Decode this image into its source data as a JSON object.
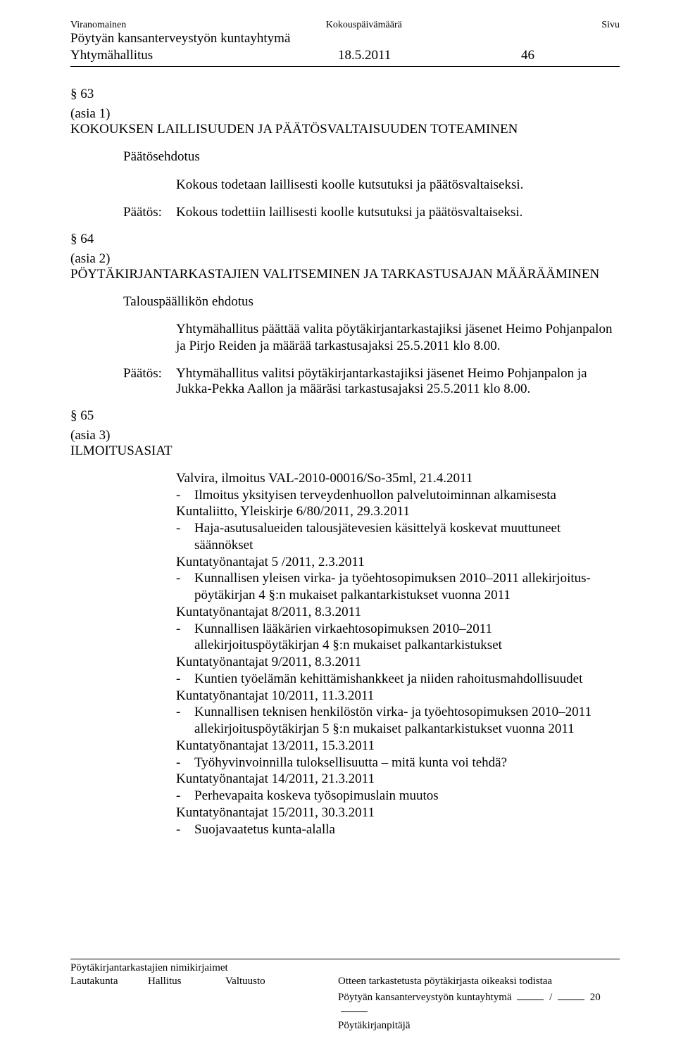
{
  "header": {
    "viranomainen": "Viranomainen",
    "kokous": "Kokouspäivämäärä",
    "sivu": "Sivu",
    "org": "Pöytyän kansanterveystyön kuntayhtymä",
    "body": "Yhtymähallitus",
    "date": "18.5.2011",
    "page": "46"
  },
  "s63": {
    "mark": "§ 63",
    "asia": "(asia 1)",
    "title": "KOKOUKSEN LAILLISUUDEN JA PÄÄTÖSVALTAISUUDEN TOTEAMINEN",
    "ehdotus_label": "Päätösehdotus",
    "ehdotus_text": "Kokous todetaan laillisesti koolle kutsutuksi ja päätösvaltaiseksi.",
    "paatos_label": "Päätös:",
    "paatos_text": "Kokous todettiin laillisesti koolle kutsutuksi ja päätösvaltaiseksi."
  },
  "s64": {
    "mark": "§ 64",
    "asia": "(asia 2)",
    "title": "PÖYTÄKIRJANTARKASTAJIEN VALITSEMINEN JA TARKASTUSAJAN MÄÄRÄÄMINEN",
    "ehdotus_label": "Talouspäällikön ehdotus",
    "ehdotus_text": "Yhtymähallitus päättää valita pöytäkirjantarkastajiksi jäsenet Heimo Pohjanpalon ja Pirjo Reiden ja määrää tarkastusajaksi 25.5.2011 klo 8.00.",
    "paatos_label": "Päätös:",
    "paatos_text": "Yhtymähallitus valitsi pöytäkirjantarkastajiksi jäsenet Heimo Pohjanpalon ja Jukka-Pekka Aallon ja määräsi tarkastusajaksi 25.5.2011 klo 8.00."
  },
  "s65": {
    "mark": "§ 65",
    "asia": "(asia 3)",
    "title": "ILMOITUSASIAT",
    "items": [
      {
        "ref": "Valvira, ilmoitus VAL-2010-00016/So-35ml, 21.4.2011",
        "bullets": [
          "Ilmoitus yksityisen terveydenhuollon palvelutoiminnan alkamisesta"
        ]
      },
      {
        "ref": "Kuntaliitto, Yleiskirje 6/80/2011, 29.3.2011",
        "bullets": [
          "Haja-asutusalueiden talousjätevesien käsittelyä koskevat muuttuneet säännökset"
        ]
      },
      {
        "ref": "Kuntatyönantajat 5 /2011, 2.3.2011",
        "bullets": [
          "Kunnallisen yleisen virka- ja työehtosopimuksen 2010–2011 allekirjoitus-pöytäkirjan 4 §:n mukaiset palkantarkistukset vuonna 2011"
        ]
      },
      {
        "ref": "Kuntatyönantajat 8/2011, 8.3.2011",
        "bullets": [
          "Kunnallisen lääkärien virkaehtosopimuksen 2010–2011 allekirjoituspöytäkirjan 4 §:n mukaiset palkantarkistukset"
        ]
      },
      {
        "ref": "Kuntatyönantajat 9/2011, 8.3.2011",
        "bullets": [
          "Kuntien työelämän kehittämishankkeet ja niiden rahoitusmahdollisuudet"
        ]
      },
      {
        "ref": "Kuntatyönantajat 10/2011, 11.3.2011",
        "bullets": [
          "Kunnallisen teknisen henkilöstön virka- ja työehtosopimuksen 2010–2011 allekirjoituspöytäkirjan 5 §:n mukaiset palkantarkistukset vuonna 2011"
        ]
      },
      {
        "ref": "Kuntatyönantajat 13/2011, 15.3.2011",
        "bullets": [
          "Työhyvinvoinnilla tuloksellisuutta – mitä kunta voi tehdä?"
        ]
      },
      {
        "ref": "Kuntatyönantajat 14/2011, 21.3.2011",
        "bullets": [
          "Perhevapaita koskeva työsopimuslain muutos"
        ]
      },
      {
        "ref": "Kuntatyönantajat 15/2011, 30.3.2011",
        "bullets": [
          "Suojavaatetus kunta-alalla"
        ]
      }
    ]
  },
  "footer": {
    "line1": "Pöytäkirjantarkastajien nimikirjaimet",
    "c1": "Lautakunta",
    "c2": "Hallitus",
    "c3": "Valtuusto",
    "c4": "Otteen tarkastetusta pöytäkirjasta oikeaksi todistaa",
    "line3a": "Pöytyän kansanterveystyön kuntayhtymä",
    "line3_slash": "/",
    "line3_year": "20",
    "line4": "Pöytäkirjanpitäjä"
  }
}
